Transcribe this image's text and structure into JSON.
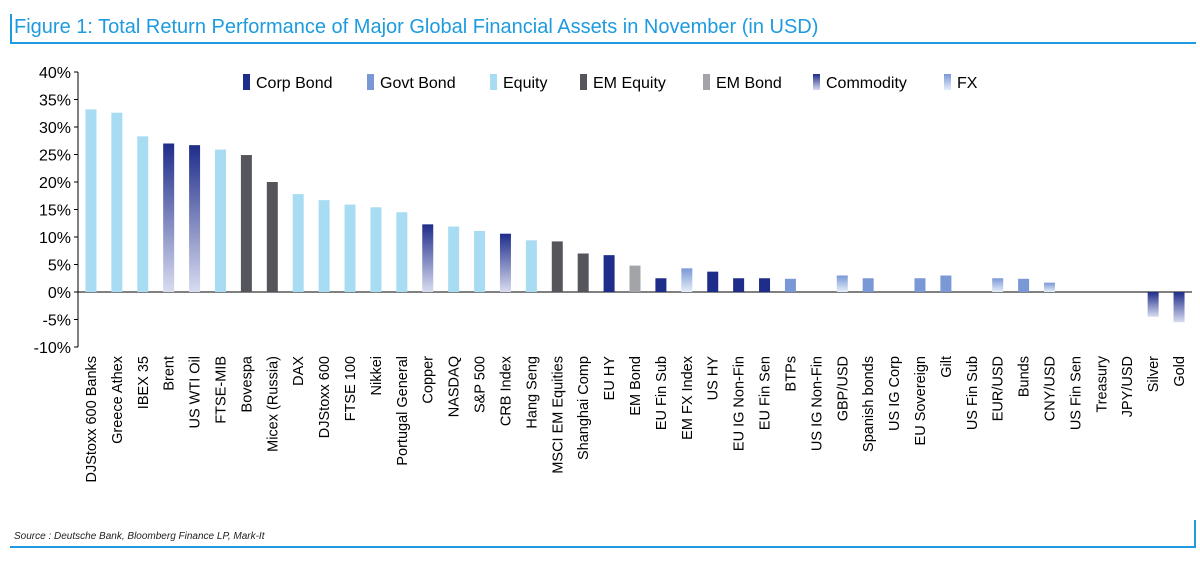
{
  "title": "Figure 1: Total Return Performance of Major Global Financial Assets in November (in USD)",
  "source": "Source : Deutsche Bank, Bloomberg Finance LP, Mark-It",
  "colors": {
    "title": "#1e9be0",
    "Corp Bond": "#1f2d8a",
    "Govt Bond": "#7a98d6",
    "Equity": "#a8dcf2",
    "EM Equity": "#54565c",
    "EM Bond": "#a3a4a8",
    "Commodity_top": "#1f2d8a",
    "Commodity_bottom": "#d8dcf0",
    "FX_top": "#7a98d6",
    "FX_bottom": "#e6eef9"
  },
  "chart_data": {
    "type": "bar",
    "y_ticks": [
      "40%",
      "35%",
      "30%",
      "25%",
      "20%",
      "15%",
      "10%",
      "5%",
      "0%",
      "-5%",
      "-10%"
    ],
    "ylim": [
      -10,
      40
    ],
    "legend": [
      "Corp Bond",
      "Govt Bond",
      "Equity",
      "EM Equity",
      "EM Bond",
      "Commodity",
      "FX"
    ],
    "legend_position": "top-right",
    "categories": [
      "DJStoxx 600 Banks",
      "Greece Athex",
      "IBEX 35",
      "Brent",
      "US WTI Oil",
      "FTSE-MIB",
      "Bovespa",
      "Micex (Russia)",
      "DAX",
      "DJStoxx 600",
      "FTSE 100",
      "Nikkei",
      "Portugal General",
      "Copper",
      "NASDAQ",
      "S&P 500",
      "CRB Index",
      "Hang Seng",
      "MSCI EM Equities",
      "Shanghai Comp",
      "EU HY",
      "EM Bond",
      "EU Fin Sub",
      "EM FX Index",
      "US HY",
      "EU IG Non-Fin",
      "EU Fin Sen",
      "BTPs",
      "US IG Non-Fin",
      "GBP/USD",
      "Spanish bonds",
      "US IG Corp",
      "EU Sovereign",
      "Gilt",
      "US Fin Sub",
      "EUR/USD",
      "Bunds",
      "CNY/USD",
      "US Fin Sen",
      "Treasury",
      "JPY/USD",
      "Silver",
      "Gold"
    ],
    "values": [
      33.2,
      32.6,
      28.3,
      27.0,
      26.7,
      25.9,
      24.9,
      20.0,
      17.8,
      16.7,
      15.9,
      15.4,
      14.5,
      12.3,
      11.9,
      11.1,
      10.6,
      9.4,
      9.2,
      7.0,
      6.7,
      4.8,
      2.5,
      4.3,
      3.7,
      2.5,
      2.5,
      2.4,
      0.0,
      3.0,
      2.5,
      0.0,
      2.5,
      3.0,
      0.0,
      2.5,
      2.4,
      1.7,
      0.0,
      0.0,
      0.0,
      -4.5,
      -5.5
    ],
    "groups": [
      "Equity",
      "Equity",
      "Equity",
      "Commodity",
      "Commodity",
      "Equity",
      "EM Equity",
      "EM Equity",
      "Equity",
      "Equity",
      "Equity",
      "Equity",
      "Equity",
      "Commodity",
      "Equity",
      "Equity",
      "Commodity",
      "Equity",
      "EM Equity",
      "EM Equity",
      "Corp Bond",
      "EM Bond",
      "Corp Bond",
      "FX",
      "Corp Bond",
      "Corp Bond",
      "Corp Bond",
      "Govt Bond",
      "Corp Bond",
      "FX",
      "Govt Bond",
      "Corp Bond",
      "Govt Bond",
      "Govt Bond",
      "Corp Bond",
      "FX",
      "Govt Bond",
      "FX",
      "Corp Bond",
      "Govt Bond",
      "FX",
      "Commodity",
      "Commodity"
    ]
  }
}
